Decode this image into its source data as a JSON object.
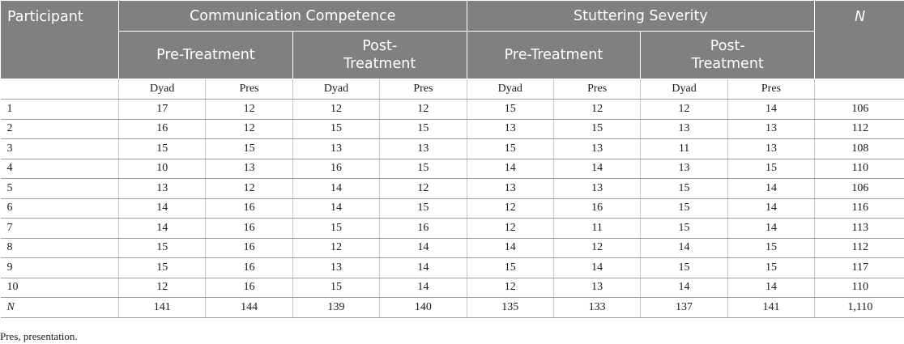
{
  "headers": {
    "participant": "Participant",
    "group1": "Communication Competence",
    "group2": "Stuttering Severity",
    "n": "N",
    "pre": "Pre-Treatment",
    "post_line1": "Post-",
    "post_line2": "Treatment"
  },
  "subheaders": [
    "Dyad",
    "Pres",
    "Dyad",
    "Pres",
    "Dyad",
    "Pres",
    "Dyad",
    "Pres"
  ],
  "rows": [
    {
      "label": "1",
      "values": [
        "17",
        "12",
        "12",
        "12",
        "15",
        "12",
        "12",
        "14"
      ],
      "n": "106"
    },
    {
      "label": "2",
      "values": [
        "16",
        "12",
        "15",
        "15",
        "13",
        "15",
        "13",
        "13"
      ],
      "n": "112"
    },
    {
      "label": "3",
      "values": [
        "15",
        "15",
        "13",
        "13",
        "15",
        "13",
        "11",
        "13"
      ],
      "n": "108"
    },
    {
      "label": "4",
      "values": [
        "10",
        "13",
        "16",
        "15",
        "14",
        "14",
        "13",
        "15"
      ],
      "n": "110"
    },
    {
      "label": "5",
      "values": [
        "13",
        "12",
        "14",
        "12",
        "13",
        "13",
        "15",
        "14"
      ],
      "n": "106"
    },
    {
      "label": "6",
      "values": [
        "14",
        "16",
        "14",
        "15",
        "12",
        "16",
        "15",
        "14"
      ],
      "n": "116"
    },
    {
      "label": "7",
      "values": [
        "14",
        "16",
        "15",
        "16",
        "12",
        "11",
        "15",
        "14"
      ],
      "n": "113"
    },
    {
      "label": "8",
      "values": [
        "15",
        "16",
        "12",
        "14",
        "14",
        "12",
        "14",
        "15"
      ],
      "n": "112"
    },
    {
      "label": "9",
      "values": [
        "15",
        "16",
        "13",
        "14",
        "15",
        "14",
        "15",
        "15"
      ],
      "n": "117"
    },
    {
      "label": "10",
      "values": [
        "12",
        "16",
        "15",
        "14",
        "12",
        "13",
        "14",
        "14"
      ],
      "n": "110"
    }
  ],
  "total": {
    "label": "N",
    "values": [
      "141",
      "144",
      "139",
      "140",
      "135",
      "133",
      "137",
      "141"
    ],
    "n": "1,110"
  },
  "footnote": "Pres, presentation."
}
